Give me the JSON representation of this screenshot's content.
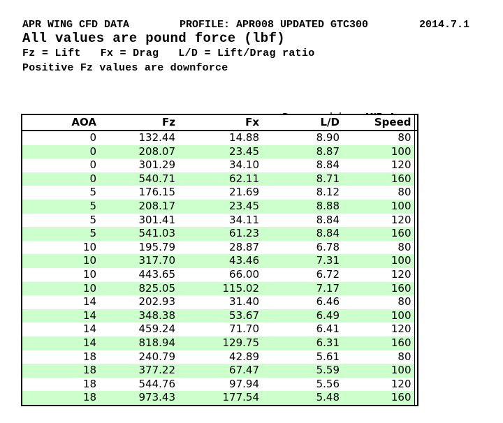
{
  "header": {
    "line1_left": "APR WING CFD DATA",
    "line1_middle": "PROFILE: APR008 UPDATED GTC300",
    "line1_right": "2014.7.1",
    "line2": "All values are pound force (lbf)",
    "line3": "Fz = Lift   Fx = Drag   L/D = Lift/Drag ratio",
    "line4": "Positive Fz values are downforce"
  },
  "prepared_by": {
    "label": "Prepared by: ",
    "name": "AMB Aero"
  },
  "chart_data": {
    "type": "table",
    "title": "APR WING CFD DATA",
    "columns": [
      "AOA",
      "Fz",
      "Fx",
      "L/D",
      "Speed"
    ],
    "rows": [
      [
        "0",
        "132.44",
        "14.88",
        "8.90",
        "80"
      ],
      [
        "0",
        "208.07",
        "23.45",
        "8.87",
        "100"
      ],
      [
        "0",
        "301.29",
        "34.10",
        "8.84",
        "120"
      ],
      [
        "0",
        "540.71",
        "62.11",
        "8.71",
        "160"
      ],
      [
        "5",
        "176.15",
        "21.69",
        "8.12",
        "80"
      ],
      [
        "5",
        "208.17",
        "23.45",
        "8.88",
        "100"
      ],
      [
        "5",
        "301.41",
        "34.11",
        "8.84",
        "120"
      ],
      [
        "5",
        "541.03",
        "61.23",
        "8.84",
        "160"
      ],
      [
        "10",
        "195.79",
        "28.87",
        "6.78",
        "80"
      ],
      [
        "10",
        "317.70",
        "43.46",
        "7.31",
        "100"
      ],
      [
        "10",
        "443.65",
        "66.00",
        "6.72",
        "120"
      ],
      [
        "10",
        "825.05",
        "115.02",
        "7.17",
        "160"
      ],
      [
        "14",
        "202.93",
        "31.40",
        "6.46",
        "80"
      ],
      [
        "14",
        "348.38",
        "53.67",
        "6.49",
        "100"
      ],
      [
        "14",
        "459.24",
        "71.70",
        "6.41",
        "120"
      ],
      [
        "14",
        "818.94",
        "129.75",
        "6.31",
        "160"
      ],
      [
        "18",
        "240.79",
        "42.89",
        "5.61",
        "80"
      ],
      [
        "18",
        "377.22",
        "67.47",
        "5.59",
        "100"
      ],
      [
        "18",
        "544.76",
        "97.94",
        "5.56",
        "120"
      ],
      [
        "18",
        "973.43",
        "177.54",
        "5.48",
        "160"
      ]
    ]
  },
  "colors": {
    "row_alt": "#ccffcc",
    "border": "#000000",
    "text": "#000000",
    "background": "#ffffff"
  }
}
